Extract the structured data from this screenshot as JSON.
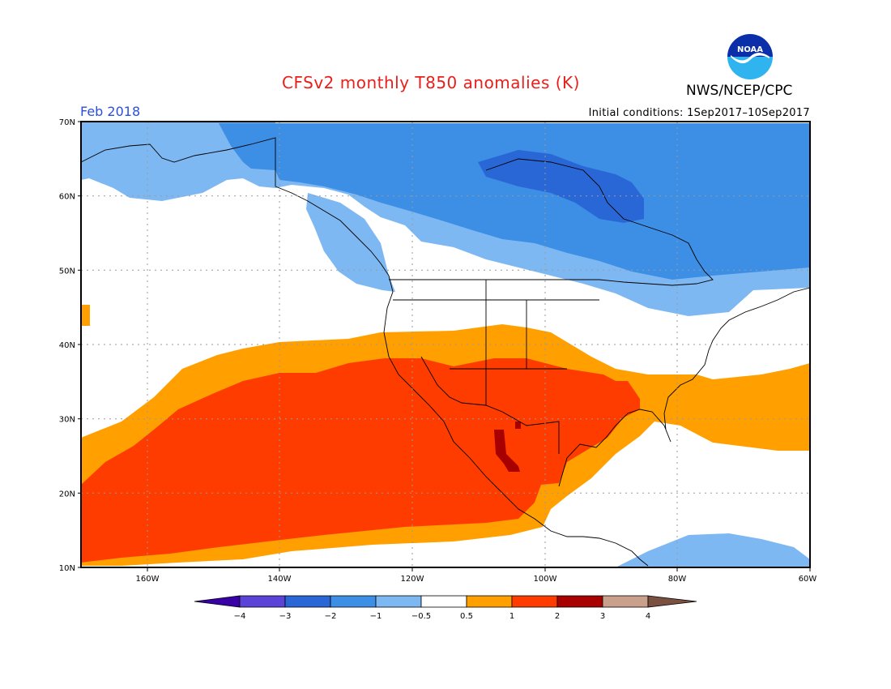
{
  "header": {
    "title": "CFSv2 monthly T850 anomalies (K)",
    "agency": "NWS/NCEP/CPC",
    "period": "Feb 2018",
    "initial_conditions": "Initial conditions: 1Sep2017–10Sep2017"
  },
  "logo": {
    "icon": "noaa-logo-icon",
    "text": "NOAA"
  },
  "axes": {
    "lat_labels": [
      "70N",
      "60N",
      "50N",
      "40N",
      "30N",
      "20N",
      "10N"
    ],
    "lon_labels": [
      "160W",
      "140W",
      "120W",
      "100W",
      "80W",
      "60W"
    ]
  },
  "colorbar": {
    "labels": [
      "−4",
      "−3",
      "−2",
      "−1",
      "−0.5",
      "0.5",
      "1",
      "2",
      "3",
      "4"
    ],
    "colors": [
      "#3a00a8",
      "#5a43d6",
      "#2a67d6",
      "#3d8fe6",
      "#7eb8f2",
      "#ffffff",
      "#ffa000",
      "#ff3c00",
      "#a80000",
      "#c8a08c",
      "#7a5040"
    ]
  },
  "colors": {
    "ocean_land_neutral": "#ffffff",
    "cool_light": "#7eb8f2",
    "cool_mid": "#3d8fe6",
    "cool_dark": "#2a67d6",
    "warm_light": "#ffa000",
    "warm_mid": "#ff3c00",
    "warm_dark": "#a80000",
    "title": "#e8201c",
    "period": "#2b4fd9"
  }
}
